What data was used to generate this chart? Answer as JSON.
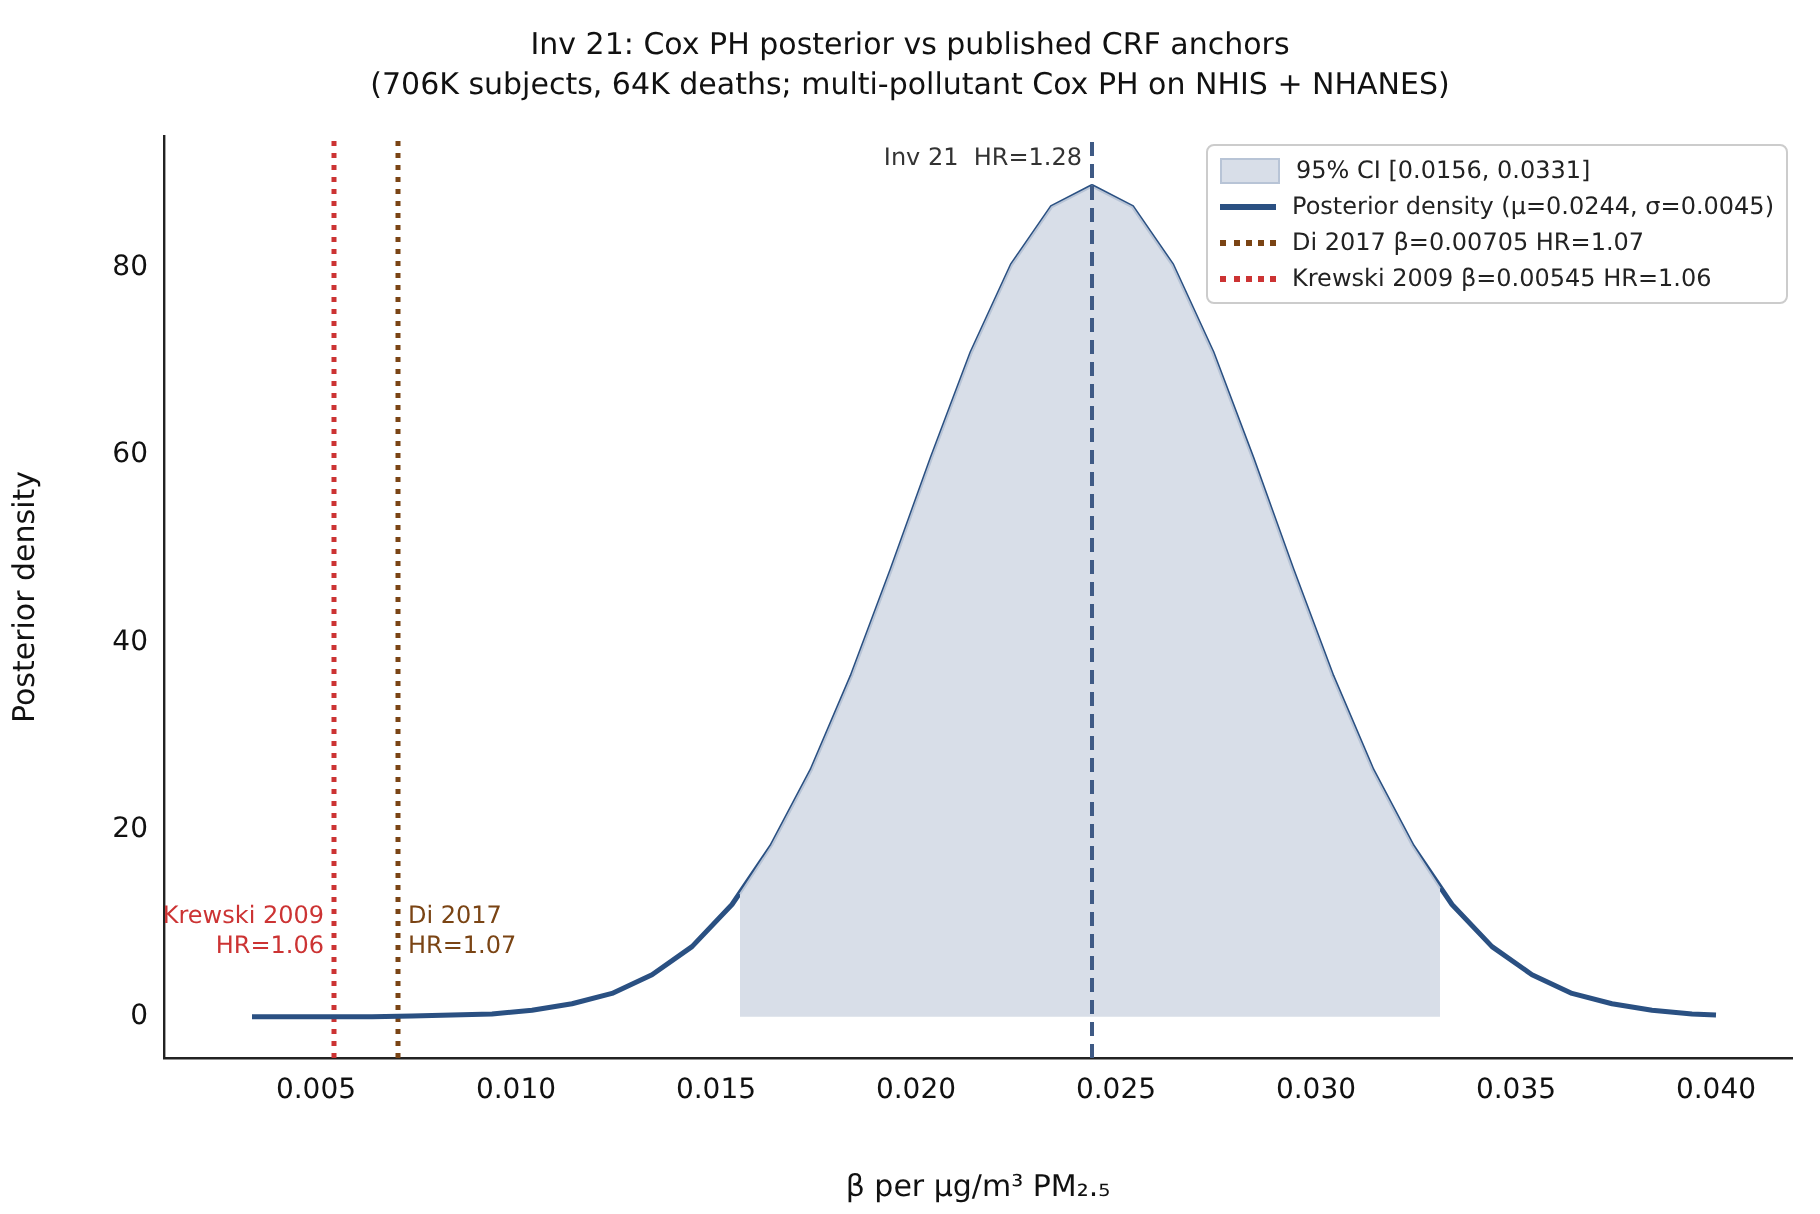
{
  "chart_data": {
    "type": "line",
    "title": "Inv 21: Cox PH posterior vs published CRF anchors\n(706K subjects, 64K deaths; multi-pollutant Cox PH on NHIS + NHANES)",
    "xlabel": "β per µg/m³ PM₂.₅",
    "ylabel": "Posterior density",
    "xlim": [
      0.0012,
      0.0419
    ],
    "ylim": [
      -4.4,
      94.1
    ],
    "xticks": [
      {
        "value": 0.005,
        "label": "0.005"
      },
      {
        "value": 0.01,
        "label": "0.010"
      },
      {
        "value": 0.015,
        "label": "0.015"
      },
      {
        "value": 0.02,
        "label": "0.020"
      },
      {
        "value": 0.025,
        "label": "0.025"
      },
      {
        "value": 0.03,
        "label": "0.030"
      },
      {
        "value": 0.035,
        "label": "0.035"
      },
      {
        "value": 0.04,
        "label": "0.040"
      }
    ],
    "yticks": [
      0,
      20,
      40,
      60,
      80
    ],
    "grid": false,
    "legend": "top right",
    "marker": "none",
    "series": [
      {
        "name": "95% CI [0.0156, 0.0331]",
        "type": "area",
        "color": "#d8dee8",
        "x": [
          0.0156,
          0.0164,
          0.0174,
          0.0184,
          0.0194,
          0.0204,
          0.0214,
          0.0224,
          0.0234,
          0.0244,
          0.0254,
          0.0264,
          0.0274,
          0.0284,
          0.0294,
          0.0304,
          0.0314,
          0.0324,
          0.0331
        ],
        "values": [
          13.1,
          18.3,
          26.4,
          36.4,
          47.8,
          59.7,
          71.0,
          80.3,
          86.5,
          88.7,
          86.5,
          80.3,
          71.0,
          59.7,
          47.8,
          36.4,
          26.4,
          18.3,
          13.7
        ]
      },
      {
        "name": "Posterior density  (μ=0.0244, σ=0.0045)",
        "color": "#2a5082",
        "line_style": "solid",
        "x": [
          0.0034,
          0.0044,
          0.0054,
          0.0064,
          0.0074,
          0.0084,
          0.0094,
          0.0104,
          0.0114,
          0.0124,
          0.0134,
          0.0144,
          0.0154,
          0.0164,
          0.0174,
          0.0184,
          0.0194,
          0.0204,
          0.0214,
          0.0224,
          0.0234,
          0.0244,
          0.0254,
          0.0264,
          0.0274,
          0.0284,
          0.0294,
          0.0304,
          0.0314,
          0.0324,
          0.0334,
          0.0344,
          0.0354,
          0.0364,
          0.0374,
          0.0384,
          0.0394,
          0.04
        ],
        "values": [
          0.0,
          0.0,
          0.0,
          0.0,
          0.1,
          0.2,
          0.3,
          0.7,
          1.4,
          2.5,
          4.5,
          7.5,
          12.0,
          18.3,
          26.4,
          36.4,
          47.8,
          59.7,
          71.0,
          80.3,
          86.5,
          88.7,
          86.5,
          80.3,
          71.0,
          59.7,
          47.8,
          36.4,
          26.4,
          18.3,
          12.0,
          7.5,
          4.5,
          2.5,
          1.4,
          0.7,
          0.3,
          0.2
        ]
      },
      {
        "name": "Di 2017  β=0.00705  HR=1.07",
        "type": "line",
        "color": "#7a4414",
        "line_style": "dotted",
        "x": [
          0.00705,
          0.00705
        ],
        "values": [
          -4.4,
          94.1
        ]
      },
      {
        "name": "Krewski 2009  β=0.00545  HR=1.06",
        "type": "line",
        "color": "#cc3333",
        "line_style": "dotted",
        "x": [
          0.00545,
          0.00545
        ],
        "values": [
          -4.4,
          94.1
        ]
      }
    ],
    "ref_lines": [
      {
        "axis": "x",
        "value": 0.0244,
        "color": "#3f5a85",
        "line_style": "dashed"
      }
    ],
    "annotations": [
      {
        "text": "Inv 21  HR=1.28",
        "x": 0.0244,
        "y": 91
      },
      {
        "text": "Di 2017\nHR=1.07",
        "x": 0.00705,
        "y": 10
      },
      {
        "text": "Krewski 2009\nHR=1.06",
        "x": 0.00545,
        "y": 10
      }
    ]
  }
}
